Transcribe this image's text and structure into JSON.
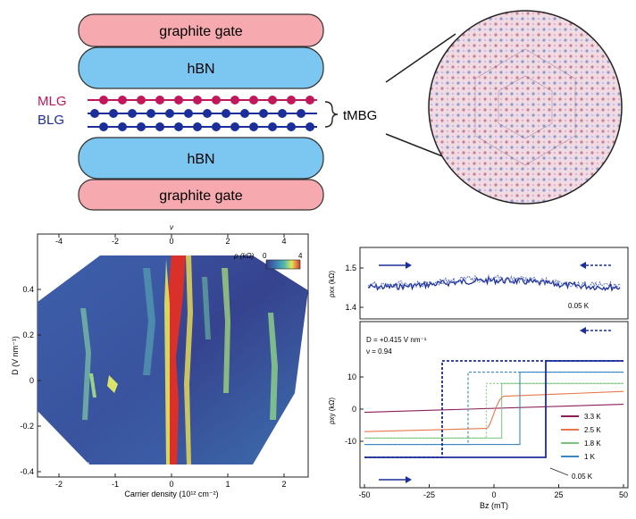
{
  "figure": {
    "schematic": {
      "top_gate": "graphite gate",
      "top_hbn": "hBN",
      "mlg_label": "MLG",
      "blg_label": "BLG",
      "tmbg_label": "tMBG",
      "bottom_hbn": "hBN",
      "bottom_gate": "graphite gate",
      "colors": {
        "gate": "#f6a9ae",
        "hbn": "#7cc7f2",
        "mlg": "#c0185a",
        "blg": "#1b2e9a"
      }
    },
    "colormap_panel": {
      "top_axis_label": "ν",
      "top_ticks": [
        "-4",
        "-2",
        "0",
        "2",
        "4"
      ],
      "left_ticks": [
        "0.4",
        "0.2",
        "0",
        "-0.2",
        "-0.4"
      ],
      "bottom_ticks": [
        "-2",
        "-1",
        "0",
        "1",
        "2"
      ],
      "ylabel": "D (V nm⁻¹)",
      "xlabel": "Carrier density (10¹² cm⁻²)",
      "colorbar_label": "ρ (kΩ)",
      "colorbar_min": "0",
      "colorbar_max": "4",
      "theta_label": "θ = 0.89°",
      "temp_label": "T = 0.05 K"
    },
    "upper_hysteresis": {
      "ticks": [
        "1.5",
        "1.4"
      ],
      "ylabel": "ρxx (kΩ)",
      "temp": "0.05 K"
    },
    "lower_hysteresis": {
      "ticks": [
        "10",
        "0",
        "-10"
      ],
      "xticks": [
        "-50",
        "-25",
        "0",
        "25",
        "50"
      ],
      "ylabel": "ρxy (kΩ)",
      "xlabel": "Bz (mT)",
      "d_label": "D = +0.415 V nm⁻¹",
      "nu_label": "ν = 0.94",
      "annot": "0.05 K",
      "legend": [
        {
          "label": "3.3 K",
          "color": "#8b1e5a"
        },
        {
          "label": "2.5 K",
          "color": "#e8764a"
        },
        {
          "label": "1.8 K",
          "color": "#7bc47b"
        },
        {
          "label": "1 K",
          "color": "#3a86c2"
        }
      ]
    }
  }
}
